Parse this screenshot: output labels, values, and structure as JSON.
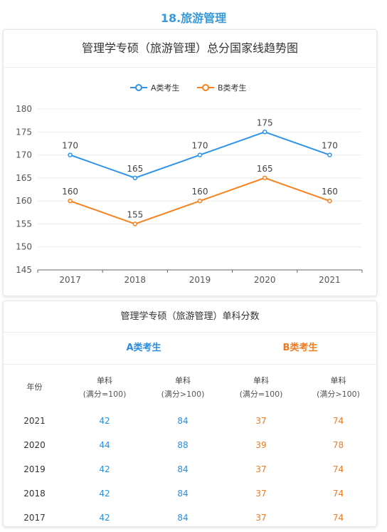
{
  "heading": "18.旅游管理",
  "chart_data": {
    "type": "line",
    "title": "管理学专硕（旅游管理）总分国家线趋势图",
    "categories": [
      "2017",
      "2018",
      "2019",
      "2020",
      "2021"
    ],
    "series": [
      {
        "name": "A类考生",
        "values": [
          170,
          165,
          170,
          175,
          170
        ],
        "color": "#2f93ea"
      },
      {
        "name": "B类考生",
        "values": [
          160,
          155,
          160,
          165,
          160
        ],
        "color": "#f5821f"
      }
    ],
    "ylim": [
      145,
      180
    ],
    "yticks": [
      145,
      150,
      155,
      160,
      165,
      170,
      175,
      180
    ],
    "grid": true,
    "legend": "top-center",
    "xlabel": "",
    "ylabel": ""
  },
  "table": {
    "title": "管理学专硕（旅游管理）单科分数",
    "group_a": "A类考生",
    "group_b": "B类考生",
    "headers": [
      {
        "main": "年份",
        "sub": ""
      },
      {
        "main": "单科",
        "sub": "(满分=100)"
      },
      {
        "main": "单科",
        "sub": "(满分>100)"
      },
      {
        "main": "单科",
        "sub": "(满分=100)"
      },
      {
        "main": "单科",
        "sub": "(满分>100)"
      }
    ],
    "rows": [
      [
        "2021",
        "42",
        "84",
        "37",
        "74"
      ],
      [
        "2020",
        "44",
        "88",
        "39",
        "78"
      ],
      [
        "2019",
        "42",
        "84",
        "37",
        "74"
      ],
      [
        "2018",
        "42",
        "84",
        "37",
        "74"
      ],
      [
        "2017",
        "42",
        "84",
        "37",
        "74"
      ]
    ]
  }
}
